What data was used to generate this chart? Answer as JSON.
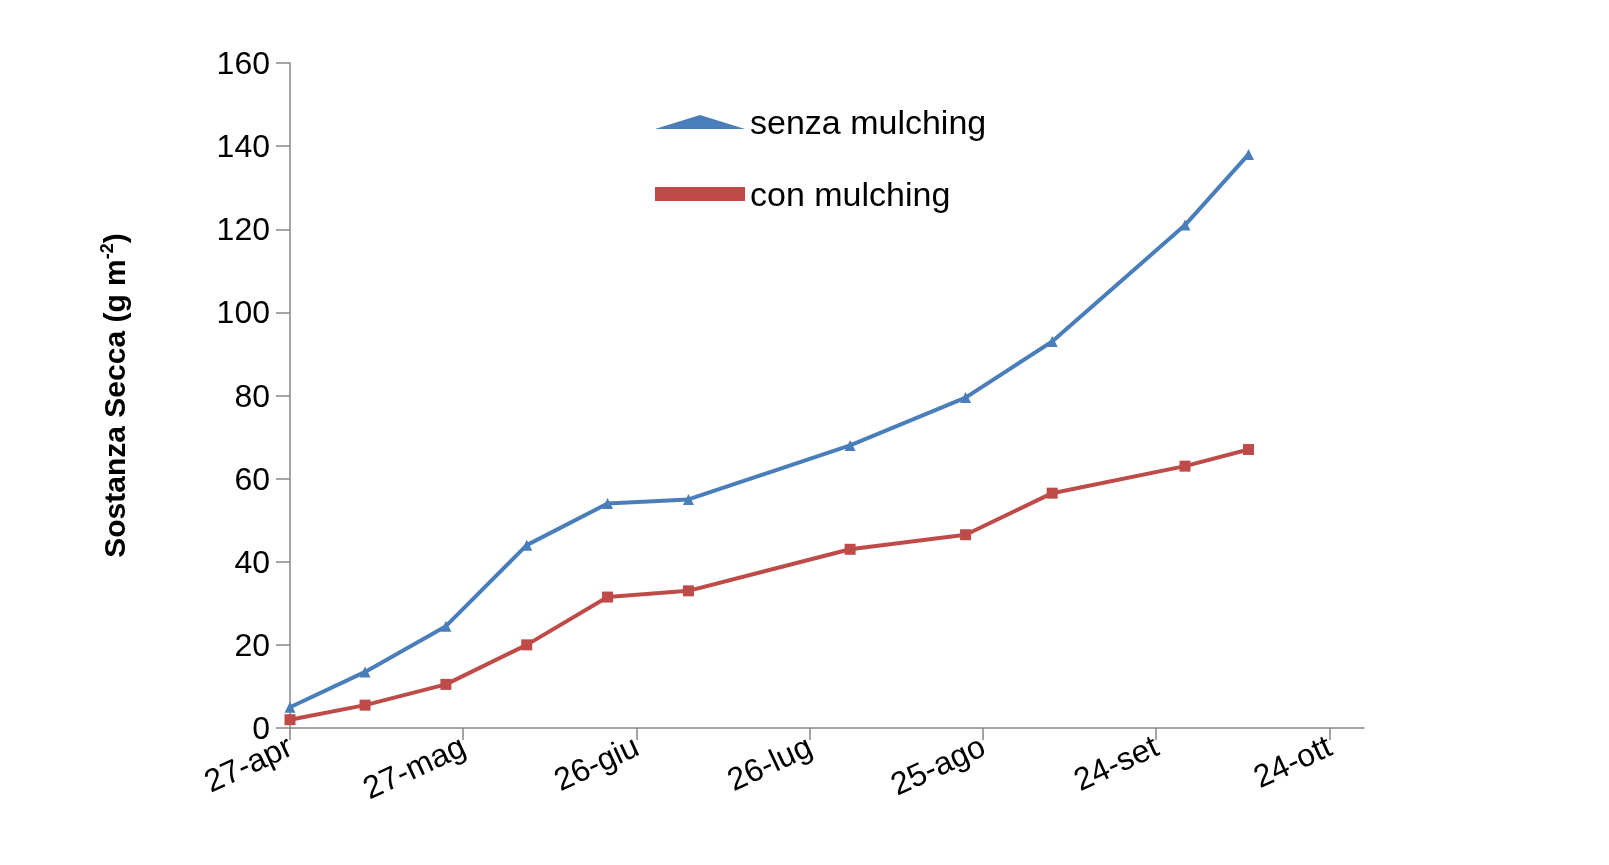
{
  "chart_data": {
    "type": "line",
    "ylabel": "Sostanza Secca (g m$^{-2}$)",
    "x": [
      "--04-27",
      "--05-10",
      "--05-24",
      "--06-07",
      "--06-21",
      "--07-05",
      "--08-02",
      "--08-22",
      "--09-06",
      "--09-29",
      "--10-10"
    ],
    "series": [
      {
        "name": "senza mulching",
        "color": "#4a7ebb",
        "marker": "triangle",
        "values": [
          5,
          13.5,
          24.5,
          44,
          54,
          55,
          68,
          79.5,
          93,
          121,
          138
        ]
      },
      {
        "name": "con mulching",
        "color": "#be4b48",
        "marker": "square",
        "values": [
          2,
          5.5,
          10.5,
          20,
          31.5,
          33,
          43,
          46.5,
          56.5,
          63,
          67
        ]
      }
    ],
    "xlim": [
      "--04-27",
      "--10-30"
    ],
    "xticks": [
      {
        "value": "--04-27",
        "label": "27-apr"
      },
      {
        "value": "--05-27",
        "label": "27-mag"
      },
      {
        "value": "--06-26",
        "label": "26-giu"
      },
      {
        "value": "--07-26",
        "label": "26-lug"
      },
      {
        "value": "--08-25",
        "label": "25-ago"
      },
      {
        "value": "--09-24",
        "label": "24-set"
      },
      {
        "value": "--10-24",
        "label": "24-ott"
      }
    ],
    "ylim": [
      0,
      160
    ],
    "yticks": [
      0,
      20,
      40,
      60,
      80,
      100,
      120,
      140,
      160
    ],
    "legend": "top",
    "line_style": "solid"
  }
}
